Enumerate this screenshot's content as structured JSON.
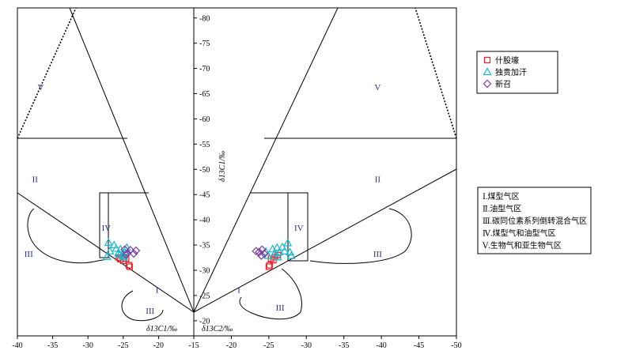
{
  "chart_data": {
    "type": "scatter",
    "title": "",
    "xlabel_left": "δ13C1/‰",
    "xlabel_right": "δ13C2/‰",
    "ylabel": "δ13C1/‰",
    "x_ticks": [
      "-40",
      "-35",
      "-30",
      "-25",
      "-20",
      "-15",
      "-20",
      "-25",
      "-30",
      "-35",
      "-40",
      "-45",
      "-50"
    ],
    "y_ticks": [
      "-20",
      "-25",
      "-30",
      "-35",
      "-40",
      "-45",
      "-50",
      "-55",
      "-60",
      "-65",
      "-70",
      "-75",
      "-80"
    ],
    "left_panel": {
      "x_axis": "δ13C1",
      "x_range": [
        -40,
        -15
      ]
    },
    "right_panel": {
      "x_axis": "δ13C2",
      "x_range": [
        -15,
        -50
      ]
    },
    "y_range": [
      -17,
      -82
    ],
    "region_labels": [
      "V",
      "II",
      "IV",
      "III",
      "III",
      "I",
      "V",
      "II",
      "IV",
      "III",
      "III",
      "I"
    ],
    "region_label_layout": [
      {
        "panel": "left",
        "x": -36.7,
        "y": -65.7
      },
      {
        "panel": "left",
        "x": -37.5,
        "y": -47.5
      },
      {
        "panel": "left",
        "x": -27.4,
        "y": -37.8
      },
      {
        "panel": "left",
        "x": -38.4,
        "y": -32.7
      },
      {
        "panel": "left",
        "x": -21.2,
        "y": -21.4
      },
      {
        "panel": "left",
        "x": -20.2,
        "y": -25.5
      },
      {
        "panel": "right",
        "x": -39.5,
        "y": -65.7
      },
      {
        "panel": "right",
        "x": -39.5,
        "y": -47.5
      },
      {
        "panel": "right",
        "x": -29.0,
        "y": -37.8
      },
      {
        "panel": "right",
        "x": -39.5,
        "y": -32.7
      },
      {
        "panel": "right",
        "x": -26.5,
        "y": -22.0
      },
      {
        "panel": "right",
        "x": -21.0,
        "y": -25.5
      }
    ],
    "series": [
      {
        "name": "什股壕",
        "marker": "square",
        "color": "#e8202a",
        "left_points": [
          [
            -24.6,
            -32.3
          ],
          [
            -25.0,
            -31.9
          ],
          [
            -25.4,
            -32.2
          ],
          [
            -24.2,
            -31.0
          ],
          [
            -24.1,
            -30.7
          ],
          [
            -25.6,
            -32.5
          ],
          [
            -24.8,
            -33.0
          ]
        ],
        "right_points": [
          [
            -25.3,
            -32.3
          ],
          [
            -25.6,
            -32.0
          ],
          [
            -25.1,
            -31.0
          ],
          [
            -25.0,
            -30.7
          ],
          [
            -25.8,
            -32.6
          ],
          [
            -26.2,
            -33.0
          ]
        ]
      },
      {
        "name": "独贵加汗",
        "marker": "triangle",
        "color": "#16b9cf",
        "left_points": [
          [
            -27.1,
            -35.5
          ],
          [
            -26.9,
            -33.8
          ],
          [
            -26.3,
            -35.0
          ],
          [
            -26.0,
            -34.3
          ],
          [
            -25.7,
            -33.4
          ],
          [
            -25.4,
            -34.2
          ],
          [
            -25.1,
            -32.9
          ],
          [
            -24.8,
            -33.7
          ],
          [
            -24.5,
            -34.5
          ],
          [
            -24.9,
            -32.6
          ],
          [
            -25.5,
            -33.1
          ],
          [
            -27.3,
            -32.7
          ]
        ],
        "right_points": [
          [
            -24.6,
            -33.7
          ],
          [
            -24.9,
            -32.9
          ],
          [
            -25.5,
            -34.2
          ],
          [
            -25.8,
            -33.4
          ],
          [
            -26.1,
            -34.5
          ],
          [
            -26.4,
            -33.6
          ],
          [
            -26.8,
            -34.6
          ],
          [
            -27.1,
            -33.8
          ],
          [
            -27.5,
            -35.4
          ],
          [
            -27.8,
            -33.6
          ],
          [
            -28.0,
            -32.9
          ],
          [
            -26.2,
            -32.6
          ]
        ]
      },
      {
        "name": "新召",
        "marker": "diamond",
        "color": "#7b3aa0",
        "left_points": [
          [
            -24.8,
            -34.1
          ],
          [
            -24.4,
            -33.4
          ],
          [
            -24.0,
            -34.0
          ],
          [
            -23.5,
            -33.3
          ],
          [
            -23.2,
            -33.9
          ],
          [
            -24.6,
            -33.1
          ]
        ],
        "right_points": [
          [
            -23.7,
            -33.6
          ],
          [
            -24.1,
            -34.1
          ],
          [
            -24.4,
            -33.3
          ],
          [
            -24.0,
            -32.9
          ],
          [
            -23.3,
            -33.8
          ]
        ]
      }
    ],
    "legend": {
      "entries": [
        "什股壕",
        "独贵加汗",
        "新召"
      ],
      "placement": "right"
    },
    "zone_legend": [
      "Ⅰ.煤型气区",
      "Ⅱ.油型气区",
      "Ⅲ.碳同位素系列倒转混合气区",
      "Ⅳ.煤型气和油型气区",
      "Ⅴ.生物气和亚生物气区"
    ],
    "grid": false
  }
}
